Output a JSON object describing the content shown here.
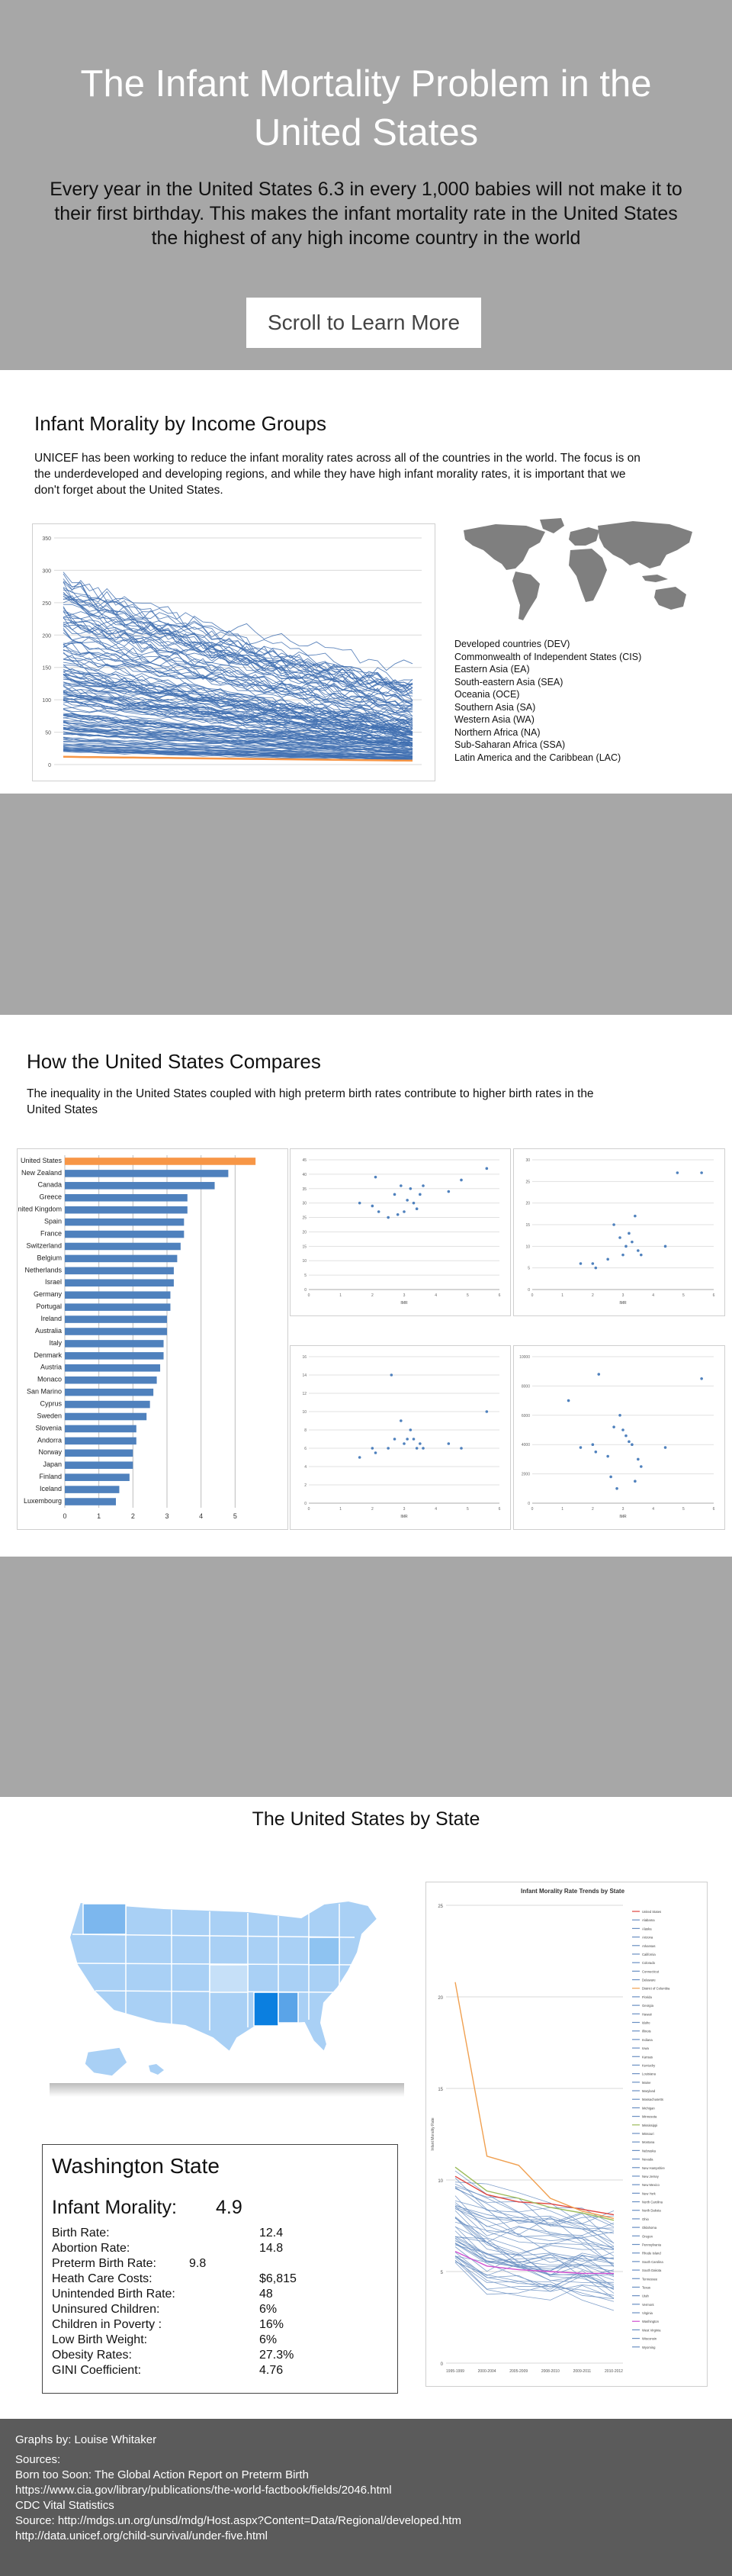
{
  "hero": {
    "title_line1": "The Infant Mortality Problem in the",
    "title_line2": "United States",
    "intro_line1": "Every year in the United States 6.3 in every 1,000 babies will not make it to",
    "intro_line2": "their first birthday. This makes the infant mortality rate in the United States",
    "intro_line3": "the highest of any high income country in the world",
    "scroll_button": "Scroll to Learn More"
  },
  "income_section": {
    "title": "Infant Morality by Income Groups",
    "text_line1": "UNICEF has been working to reduce the infant morality rates across all of the countries in the world. The focus is on",
    "text_line2": "the underdeveloped and developing regions, and while they have high infant morality rates, it is important that we",
    "text_line3": "don't forget about the United States.",
    "regions": [
      "Developed countries (DEV)",
      "Commonwealth of Independent States (CIS)",
      "Eastern Asia (EA)",
      "South-eastern Asia (SEA)",
      "Oceania (OCE)",
      "Southern Asia (SA)",
      "Western Asia (WA)",
      "Northern Africa (NA)",
      "Sub-Saharan Africa (SSA)",
      "Latin America and the Caribbean (LAC)"
    ]
  },
  "compare_section": {
    "title": "How the United States Compares",
    "text_line1": "The inequality in the United States coupled with high preterm birth rates contribute to higher birth rates in the",
    "text_line2": "United States"
  },
  "state_section": {
    "title": "The United States by State"
  },
  "state_card": {
    "name": "Washington State",
    "infant_mortality_label": "Infant Morality:",
    "infant_mortality_value": "4.9",
    "stats": [
      {
        "label": "Birth Rate:",
        "value": "12.4"
      },
      {
        "label": "Abortion Rate:",
        "value": "14.8"
      },
      {
        "label": "Preterm Birth Rate:",
        "value": "9.8"
      },
      {
        "label": "Heath Care Costs:",
        "value": "$6,815"
      },
      {
        "label": "Unintended Birth Rate:",
        "value": "48"
      },
      {
        "label": "Uninsured Children:",
        "value": "6%"
      },
      {
        "label": "Children in Poverty :",
        "value": "16%"
      },
      {
        "label": "Low Birth Weight:",
        "value": "6%"
      },
      {
        "label": "Obesity Rates:",
        "value": "27.3%"
      },
      {
        "label": "GINI Coefficient:",
        "value": "4.76"
      }
    ]
  },
  "footer": {
    "credit": "Graphs by: Louise Whitaker",
    "sources_label": "Sources:",
    "sources": [
      "Born too Soon: The Global Action Report on Preterm Birth",
      "https://www.cia.gov/library/publications/the-world-factbook/fields/2046.html",
      "CDC Vital Statistics",
      "Source: http://mdgs.un.org/unsd/mdg/Host.aspx?Content=Data/Regional/developed.htm",
      "http://data.unicef.org/child-survival/under-five.html"
    ]
  },
  "colors": {
    "hero_bg": "#a7a7a7",
    "bar_blue": "#4f81bd",
    "highlight_orange": "#f79646",
    "footer_bg": "#5b5b5b"
  },
  "chart_data": [
    {
      "id": "income-lines",
      "type": "line",
      "y_ticks": [
        "350",
        "300",
        "250",
        "200",
        "150",
        "100",
        "50",
        "0"
      ],
      "ylim": [
        0,
        350
      ],
      "series_count": 150
    },
    {
      "id": "country-bars",
      "type": "bar",
      "orientation": "horizontal",
      "categories": [
        "United States",
        "New Zealand",
        "Canada",
        "Greece",
        "United Kingdom",
        "Spain",
        "France",
        "Switzerland",
        "Belgium",
        "Netherlands",
        "Israel",
        "Germany",
        "Portugal",
        "Ireland",
        "Australia",
        "Italy",
        "Denmark",
        "Austria",
        "Monaco",
        "San Marino",
        "Cyprus",
        "Sweden",
        "Slovenia",
        "Andorra",
        "Norway",
        "Japan",
        "Finland",
        "Iceland",
        "Luxembourg"
      ],
      "values": [
        5.6,
        4.8,
        4.4,
        3.6,
        3.6,
        3.5,
        3.5,
        3.4,
        3.3,
        3.2,
        3.2,
        3.1,
        3.1,
        3.0,
        3.0,
        2.9,
        2.9,
        2.8,
        2.7,
        2.6,
        2.5,
        2.4,
        2.1,
        2.1,
        2.0,
        2.0,
        1.9,
        1.6,
        1.5
      ],
      "x_ticks": [
        "0",
        "1",
        "2",
        "3",
        "4",
        "5"
      ],
      "xlim": [
        0,
        6
      ],
      "highlight": "United States"
    },
    {
      "id": "scatter-1",
      "type": "scatter",
      "xlim": [
        0,
        6
      ],
      "ylim": [
        0,
        45
      ],
      "x_ticks": [
        "0",
        "1",
        "2",
        "3",
        "4",
        "5",
        "6"
      ],
      "y_ticks": [
        "0",
        "5",
        "10",
        "15",
        "20",
        "25",
        "30",
        "35",
        "40",
        "45"
      ],
      "xlabel": "IMR",
      "points": [
        [
          5.6,
          42
        ],
        [
          2,
          29
        ],
        [
          2.2,
          27
        ],
        [
          2.5,
          25
        ],
        [
          2.8,
          26
        ],
        [
          3,
          27
        ],
        [
          3.1,
          31
        ],
        [
          3.2,
          35
        ],
        [
          3.3,
          30
        ],
        [
          3.5,
          33
        ],
        [
          2.9,
          36
        ],
        [
          2.7,
          33
        ],
        [
          3.6,
          36
        ],
        [
          4.4,
          34
        ],
        [
          4.8,
          38
        ],
        [
          1.6,
          30
        ],
        [
          2.1,
          39
        ],
        [
          3.4,
          28
        ]
      ]
    },
    {
      "id": "scatter-2",
      "type": "scatter",
      "xlim": [
        0,
        6
      ],
      "ylim": [
        0,
        30
      ],
      "x_ticks": [
        "0",
        "1",
        "2",
        "3",
        "4",
        "5",
        "6"
      ],
      "y_ticks": [
        "0",
        "5",
        "10",
        "15",
        "20",
        "25",
        "30"
      ],
      "xlabel": "IMR",
      "points": [
        [
          5.6,
          27
        ],
        [
          4.8,
          27
        ],
        [
          2,
          6
        ],
        [
          1.6,
          6
        ],
        [
          2.5,
          7
        ],
        [
          3,
          8
        ],
        [
          3.1,
          10
        ],
        [
          3.2,
          13
        ],
        [
          3.3,
          11
        ],
        [
          3.5,
          9
        ],
        [
          2.9,
          12
        ],
        [
          2.7,
          15
        ],
        [
          3.4,
          17
        ],
        [
          3.6,
          8
        ],
        [
          4.4,
          10
        ],
        [
          2.1,
          5
        ]
      ]
    },
    {
      "id": "scatter-3",
      "type": "scatter",
      "xlim": [
        0,
        6
      ],
      "ylim": [
        0,
        16
      ],
      "x_ticks": [
        "0",
        "1",
        "2",
        "3",
        "4",
        "5",
        "6"
      ],
      "y_ticks": [
        "0",
        "2",
        "4",
        "6",
        "8",
        "10",
        "12",
        "14",
        "16"
      ],
      "xlabel": "IMR",
      "points": [
        [
          5.6,
          10
        ],
        [
          2.6,
          14
        ],
        [
          2,
          6
        ],
        [
          1.6,
          5
        ],
        [
          2.1,
          5.5
        ],
        [
          2.5,
          6
        ],
        [
          3,
          6.5
        ],
        [
          3.1,
          7
        ],
        [
          3.2,
          8
        ],
        [
          3.3,
          7
        ],
        [
          3.5,
          6.5
        ],
        [
          2.9,
          9
        ],
        [
          2.7,
          7
        ],
        [
          3.4,
          6
        ],
        [
          3.6,
          6
        ],
        [
          4.4,
          6.5
        ],
        [
          4.8,
          6
        ]
      ]
    },
    {
      "id": "scatter-4",
      "type": "scatter",
      "xlim": [
        0,
        6
      ],
      "ylim": [
        0,
        10000
      ],
      "x_ticks": [
        "0",
        "1",
        "2",
        "3",
        "4",
        "5",
        "6"
      ],
      "y_ticks": [
        "0",
        "2000",
        "4000",
        "6000",
        "8000",
        "10000"
      ],
      "xlabel": "IMR",
      "points": [
        [
          5.6,
          8500
        ],
        [
          1.2,
          7000
        ],
        [
          2,
          4000
        ],
        [
          1.6,
          3800
        ],
        [
          2.1,
          3500
        ],
        [
          2.5,
          3200
        ],
        [
          2.6,
          1800
        ],
        [
          2.8,
          1000
        ],
        [
          3,
          5000
        ],
        [
          3.1,
          4600
        ],
        [
          3.2,
          4200
        ],
        [
          3.3,
          4000
        ],
        [
          3.5,
          3000
        ],
        [
          2.9,
          6000
        ],
        [
          2.7,
          5200
        ],
        [
          3.4,
          1500
        ],
        [
          3.6,
          2500
        ],
        [
          4.4,
          3800
        ],
        [
          2.2,
          8800
        ]
      ]
    },
    {
      "id": "state-trends",
      "type": "line",
      "title": "Infant Morality Rate Trends by State",
      "ylabel": "Infant Morality Rate",
      "categories": [
        "1995-1999",
        "2000-2004",
        "2005-2009",
        "2008-2010",
        "2009-2011",
        "2010-2012"
      ],
      "y_ticks": [
        "25",
        "20",
        "15",
        "10",
        "5",
        "0"
      ],
      "ylim": [
        0,
        25
      ],
      "series": [
        {
          "name": "United States",
          "values": [
            10.2,
            9.2,
            8.8,
            8.7,
            8.4,
            8.1
          ],
          "color": "#e0433d"
        },
        {
          "name": "District of Columbia",
          "values": [
            20.8,
            11.3,
            10.8,
            9.0,
            8.3,
            7.9
          ],
          "color": "#f0a050"
        },
        {
          "name": "Mississippi",
          "values": [
            10.7,
            9.4,
            9.0,
            8.5,
            8.2,
            7.8
          ],
          "color": "#9bbb59"
        },
        {
          "name": "Washington",
          "values": [
            6.1,
            5.3,
            5.1,
            5.0,
            4.9,
            4.9
          ],
          "color": "#d04fd0"
        }
      ],
      "legend": [
        "United States",
        "Alabama",
        "Alaska",
        "Arizona",
        "Arkansas",
        "California",
        "Colorado",
        "Connecticut",
        "Delaware",
        "District of Columbia",
        "Florida",
        "Georgia",
        "Hawaii",
        "Idaho",
        "Illinois",
        "Indiana",
        "Iowa",
        "Kansas",
        "Kentucky",
        "Louisiana",
        "Maine",
        "Maryland",
        "Massachusetts",
        "Michigan",
        "Minnesota",
        "Mississippi",
        "Missouri",
        "Montana",
        "Nebraska",
        "Nevada",
        "New Hampshire",
        "New Jersey",
        "New Mexico",
        "New York",
        "North Carolina",
        "North Dakota",
        "Ohio",
        "Oklahoma",
        "Oregon",
        "Pennsylvania",
        "Rhode Island",
        "South Carolina",
        "South Dakota",
        "Tennessee",
        "Texas",
        "Utah",
        "Vermont",
        "Virginia",
        "Washington",
        "West Virginia",
        "Wisconsin",
        "Wyoming"
      ]
    }
  ]
}
